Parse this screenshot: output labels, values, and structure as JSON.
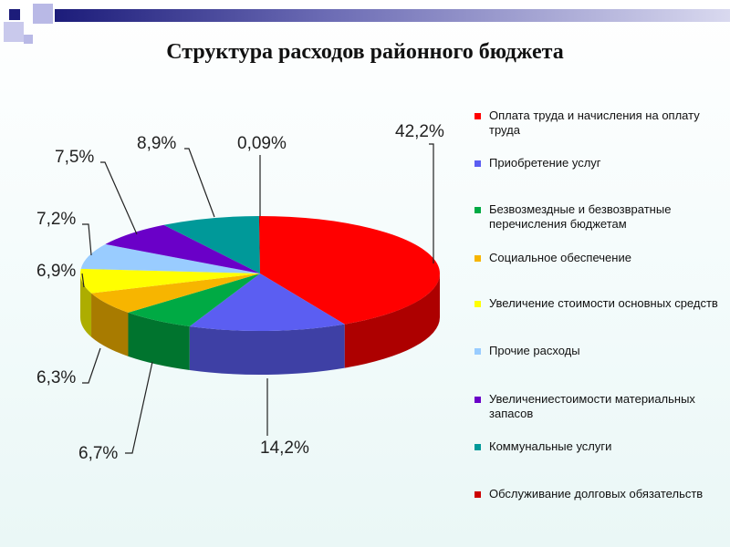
{
  "title": "Структура расходов районного бюджета",
  "chart_data": {
    "type": "pie",
    "style": "3d",
    "categories": [
      "Оплата труда и начисления на оплату труда",
      "Приобретение услуг",
      "Безвозмездные и безвозвратные перечисления бюджетам",
      "Социальное обеспечение",
      "Увеличение стоимости основных средств",
      "Прочие расходы",
      "Увеличениестоимости материальных запасов",
      "Коммунальные услуги",
      "Обслуживание долговых обязательств"
    ],
    "values": [
      42.2,
      14.2,
      6.7,
      6.3,
      6.9,
      7.2,
      7.5,
      8.9,
      0.09
    ],
    "labels": [
      "42,2%",
      "14,2%",
      "6,7%",
      "6,3%",
      "6,9%",
      "7,2%",
      "7,5%",
      "8,9%",
      "0,09%"
    ],
    "colors": [
      "#ff0000",
      "#5b5ef2",
      "#00aa44",
      "#f7b500",
      "#ffff00",
      "#99ccff",
      "#6a00c8",
      "#009999",
      "#cc0000"
    ],
    "legend_position": "right"
  }
}
